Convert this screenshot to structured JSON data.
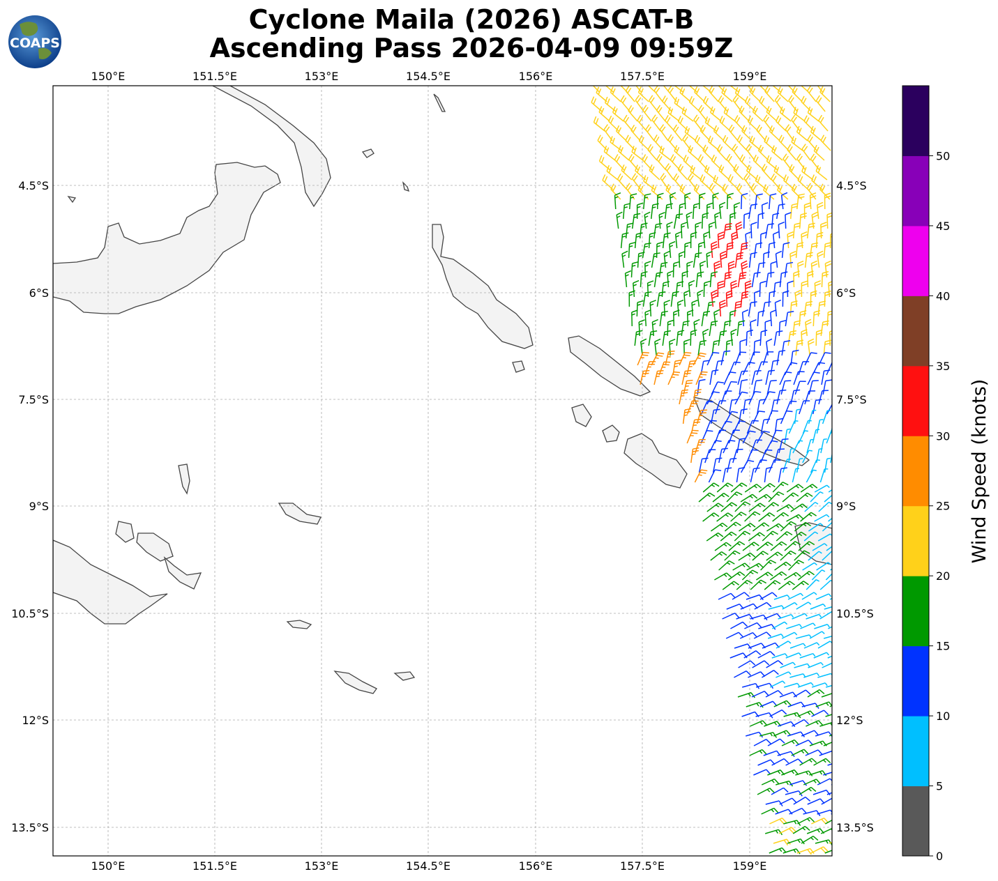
{
  "header": {
    "title_line1": "Cyclone Maila (2026) ASCAT-B",
    "title_line2": "Ascending Pass 2026-04-09 09:59Z",
    "logo_text": "COAPS"
  },
  "map": {
    "lon_labels": [
      "150°E",
      "151.5°E",
      "153°E",
      "154.5°E",
      "156°E",
      "157.5°E",
      "159°E"
    ],
    "lat_labels": [
      "4.5°S",
      "6°S",
      "7.5°S",
      "9°S",
      "10.5°S",
      "12°S",
      "13.5°S"
    ],
    "land_color": "#f3f3f3",
    "coast_color": "#444444",
    "grid_color": "#aaaaaa"
  },
  "colorbar": {
    "label": "Wind Speed (knots)",
    "ticks": [
      "0",
      "5",
      "10",
      "15",
      "20",
      "25",
      "30",
      "35",
      "40",
      "45",
      "50"
    ],
    "bins": [
      {
        "range": "0-5",
        "color": "#595959"
      },
      {
        "range": "5-10",
        "color": "#00bfff"
      },
      {
        "range": "10-15",
        "color": "#0033ff"
      },
      {
        "range": "15-20",
        "color": "#009900"
      },
      {
        "range": "20-25",
        "color": "#ffd11a"
      },
      {
        "range": "25-30",
        "color": "#ff8c00"
      },
      {
        "range": "30-35",
        "color": "#ff1010"
      },
      {
        "range": "35-40",
        "color": "#7f3f26"
      },
      {
        "range": "40-45",
        "color": "#ee00ee"
      },
      {
        "range": "45-50",
        "color": "#8800b8"
      },
      {
        "range": "50+",
        "color": "#2b005e"
      }
    ]
  }
}
